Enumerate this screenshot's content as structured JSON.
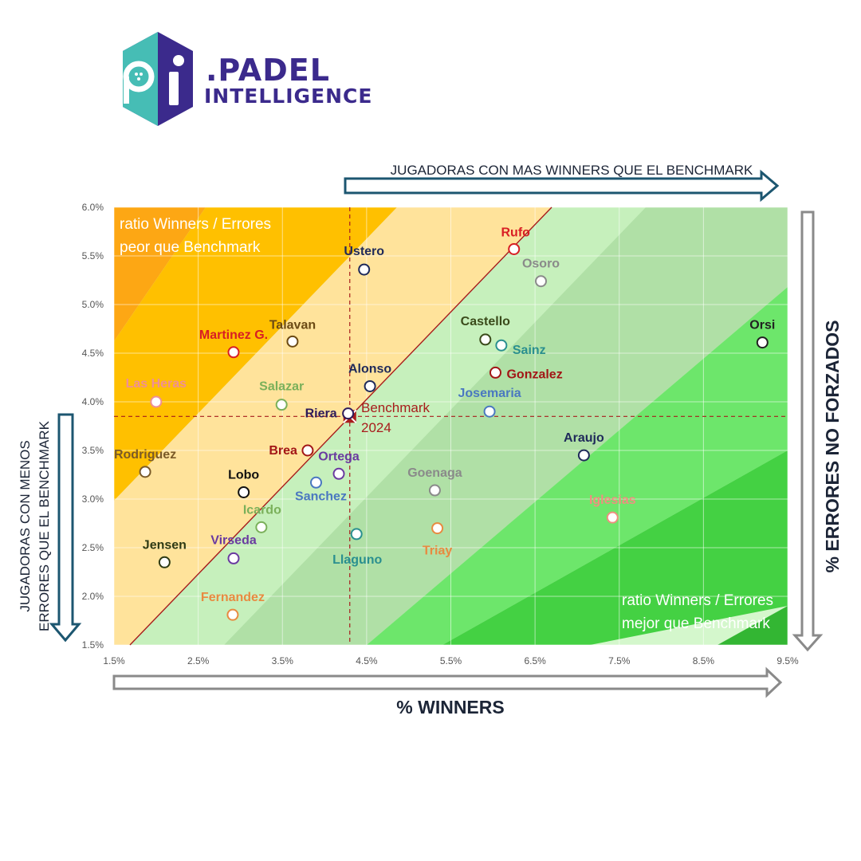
{
  "brand": {
    "word1": ".PADEL",
    "word2": "INTELLIGENCE"
  },
  "annotations": {
    "top_arrow": "JUGADORAS CON MAS WINNERS QUE EL BENCHMARK",
    "left_arrow_line1": "JUGADORAS CON MENOS",
    "left_arrow_line2": "ERRORES QUE EL BENCHMARK",
    "worse_line1": "ratio Winners / Errores",
    "worse_line2": "peor que Benchmark",
    "better_line1": "ratio Winners / Errores",
    "better_line2": "mejor que Benchmark",
    "benchmark_line1": "Benchmark",
    "benchmark_line2": "2024"
  },
  "chart_data": {
    "type": "scatter",
    "xlabel": "% WINNERS",
    "ylabel": "% ERRORES NO FORZADOS",
    "xlim": [
      1.5,
      9.5
    ],
    "ylim": [
      1.5,
      6.0
    ],
    "xticks": [
      "1.5%",
      "2.5%",
      "3.5%",
      "4.5%",
      "5.5%",
      "6.5%",
      "7.5%",
      "8.5%",
      "9.5%"
    ],
    "yticks": [
      "1.5%",
      "2.0%",
      "2.5%",
      "3.0%",
      "3.5%",
      "4.0%",
      "4.5%",
      "5.0%",
      "5.5%",
      "6.0%"
    ],
    "grid": true,
    "benchmark": {
      "x": 4.3,
      "y": 3.85
    },
    "points": [
      {
        "name": "Rufo",
        "x": 6.25,
        "y": 5.57,
        "color": "#d81e24"
      },
      {
        "name": "Ustero",
        "x": 4.47,
        "y": 5.36,
        "color": "#1f2a5a"
      },
      {
        "name": "Osoro",
        "x": 6.57,
        "y": 5.24,
        "color": "#8a8a8a"
      },
      {
        "name": "Orsi",
        "x": 9.2,
        "y": 4.61,
        "color": "#222222"
      },
      {
        "name": "Castello",
        "x": 5.91,
        "y": 4.64,
        "color": "#3a4a1a"
      },
      {
        "name": "Sainz",
        "x": 6.1,
        "y": 4.58,
        "color": "#2a8f8f"
      },
      {
        "name": "Talavan",
        "x": 3.62,
        "y": 4.62,
        "color": "#6b4a14"
      },
      {
        "name": "Martinez G.",
        "x": 2.92,
        "y": 4.51,
        "color": "#d81e24"
      },
      {
        "name": "Gonzalez",
        "x": 6.03,
        "y": 4.3,
        "color": "#a21616"
      },
      {
        "name": "Alonso",
        "x": 4.54,
        "y": 4.16,
        "color": "#1f2a5a"
      },
      {
        "name": "Las Heras",
        "x": 2.0,
        "y": 4.0,
        "color": "#ef8f95"
      },
      {
        "name": "Salazar",
        "x": 3.49,
        "y": 3.97,
        "color": "#7ab05a"
      },
      {
        "name": "Josemaria",
        "x": 5.96,
        "y": 3.9,
        "color": "#4a78c0"
      },
      {
        "name": "Riera",
        "x": 4.28,
        "y": 3.88,
        "color": "#2d1a5a"
      },
      {
        "name": "Araujo",
        "x": 7.08,
        "y": 3.45,
        "color": "#1f2a5a"
      },
      {
        "name": "Brea",
        "x": 3.8,
        "y": 3.5,
        "color": "#a21616"
      },
      {
        "name": "Rodriguez",
        "x": 1.87,
        "y": 3.28,
        "color": "#7a5a28"
      },
      {
        "name": "Ortega",
        "x": 4.17,
        "y": 3.26,
        "color": "#6a3aa0"
      },
      {
        "name": "Sanchez",
        "x": 3.9,
        "y": 3.17,
        "color": "#4a78c0"
      },
      {
        "name": "Goenaga",
        "x": 5.31,
        "y": 3.09,
        "color": "#8a8a8a"
      },
      {
        "name": "Lobo",
        "x": 3.04,
        "y": 3.07,
        "color": "#111111"
      },
      {
        "name": "Icardo",
        "x": 3.25,
        "y": 2.71,
        "color": "#7ab05a"
      },
      {
        "name": "Iglesias",
        "x": 7.42,
        "y": 2.81,
        "color": "#ef8f80"
      },
      {
        "name": "Triay",
        "x": 5.34,
        "y": 2.7,
        "color": "#e88a40"
      },
      {
        "name": "Llaguno",
        "x": 4.38,
        "y": 2.64,
        "color": "#2a8f8f"
      },
      {
        "name": "Jensen",
        "x": 2.1,
        "y": 2.35,
        "color": "#2e3a14"
      },
      {
        "name": "Virseda",
        "x": 2.92,
        "y": 2.39,
        "color": "#6a3aa0"
      },
      {
        "name": "Fernandez",
        "x": 2.91,
        "y": 1.81,
        "color": "#e88a40"
      }
    ]
  },
  "colors": {
    "band_dark_orange": "#fda714",
    "band_orange": "#ffc000",
    "band_light_orange": "#ffe39b",
    "band_pale_green": "#d4f7cc",
    "band_light_green": "#c6f0bc",
    "band_mid_green": "#b0e0a6",
    "band_green": "#6de66b",
    "band_bright_green": "#44d143",
    "band_dark_green": "#33b633",
    "benchmark": "#a81c1c",
    "arrow": "#1c5670",
    "gray_arrow": "#8a8a8a"
  }
}
